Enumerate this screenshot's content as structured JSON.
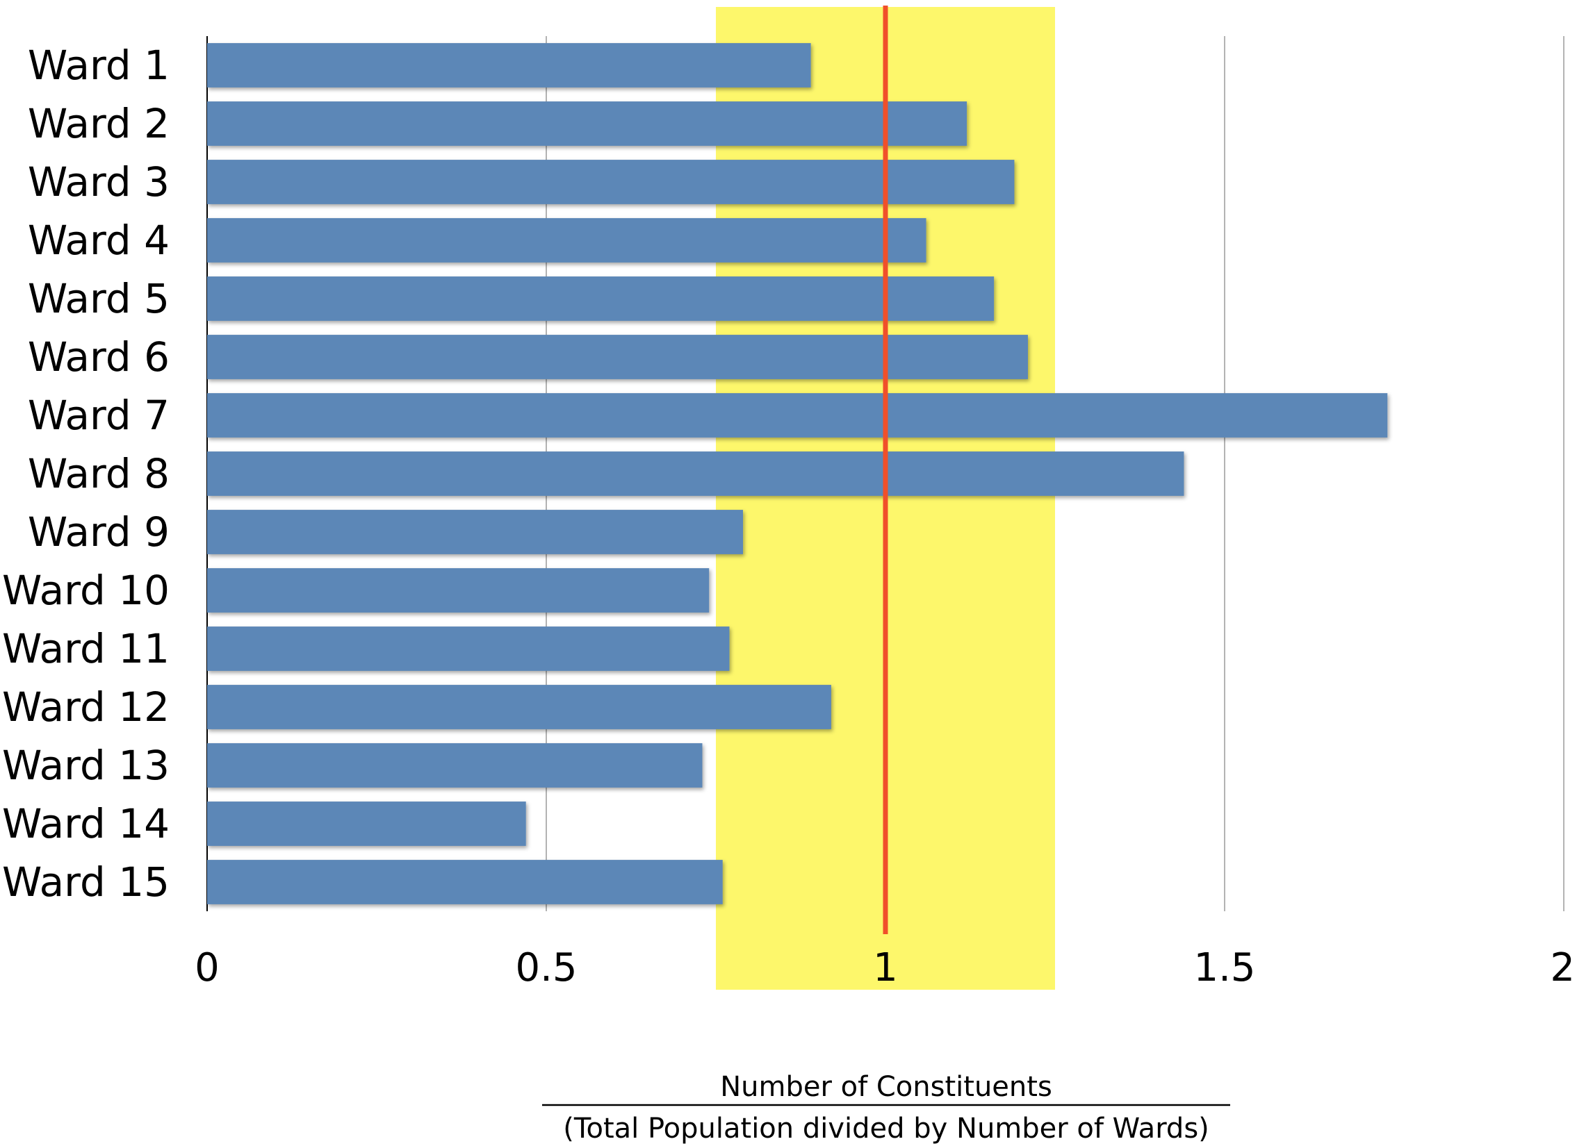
{
  "chart_data": {
    "type": "bar",
    "orientation": "horizontal",
    "categories": [
      "Ward 1",
      "Ward 2",
      "Ward 3",
      "Ward 4",
      "Ward 5",
      "Ward 6",
      "Ward 7",
      "Ward 8",
      "Ward 9",
      "Ward 10",
      "Ward 11",
      "Ward 12",
      "Ward 13",
      "Ward 14",
      "Ward 15"
    ],
    "values": [
      0.89,
      1.12,
      1.19,
      1.06,
      1.16,
      1.21,
      1.74,
      1.44,
      0.79,
      0.74,
      0.77,
      0.92,
      0.73,
      0.47,
      0.76
    ],
    "xlim": [
      0,
      2
    ],
    "xticks": [
      0,
      0.5,
      1,
      1.5,
      2
    ],
    "xtick_labels": [
      "0",
      "0.5",
      "1",
      "1.5",
      "2"
    ],
    "reference_line": 1,
    "reference_band": [
      0.75,
      1.25
    ],
    "xlabel_numerator": "Number of Constituents",
    "xlabel_denominator": "(Total Population divided by Number of Wards)",
    "grid": "vertical",
    "legend": "none"
  },
  "colors": {
    "bar": "#5b87b7",
    "band": "#fdf76b",
    "reference_line": "#f0502a",
    "gridline": "#b3b3b3",
    "axis": "#000000"
  }
}
